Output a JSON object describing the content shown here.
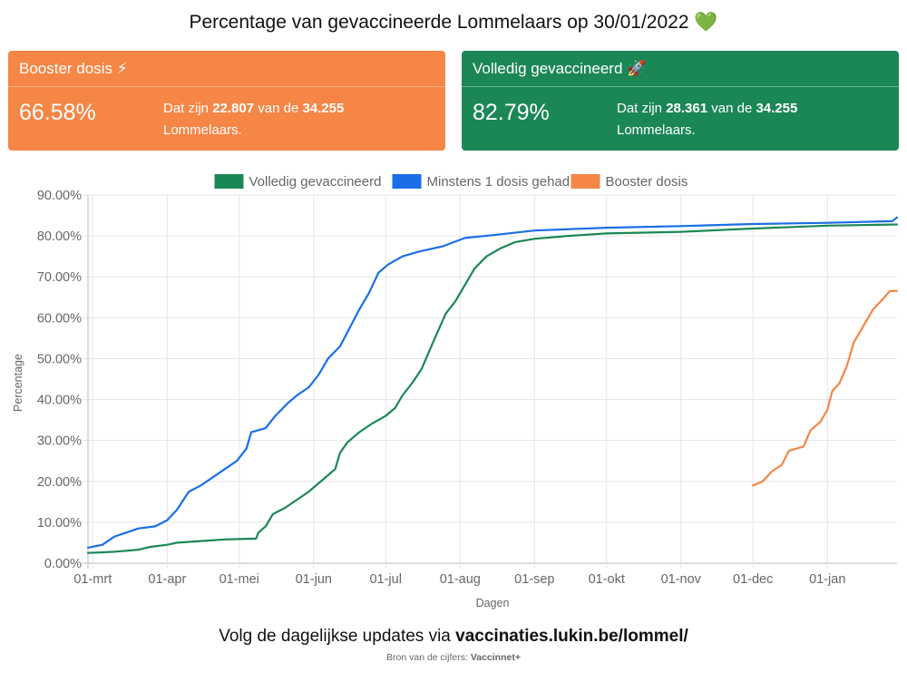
{
  "title": "Percentage van gevaccineerde Lommelaars op 30/01/2022 💚",
  "cards": {
    "booster": {
      "heading": "Booster dosis ⚡",
      "percent": "66.58%",
      "text_prefix": "Dat zijn ",
      "count": "22.807",
      "text_mid": " van de ",
      "total": "34.255",
      "text_suffix": "Lommelaars.",
      "color": "#f58646"
    },
    "full": {
      "heading": "Volledig gevaccineerd 🚀",
      "percent": "82.79%",
      "text_prefix": "Dat zijn ",
      "count": "28.361",
      "text_mid": " van de ",
      "total": "34.255",
      "text_suffix": "Lommelaars.",
      "color": "#1b8755"
    }
  },
  "chart_data": {
    "type": "line",
    "xlabel": "Dagen",
    "ylabel": "Percentage",
    "ylim": [
      0,
      90
    ],
    "yticks": [
      "0.00%",
      "10.00%",
      "20.00%",
      "30.00%",
      "40.00%",
      "50.00%",
      "60.00%",
      "70.00%",
      "80.00%",
      "90.00%"
    ],
    "xlim": [
      "2021-02-27",
      "2022-01-30"
    ],
    "xticks": [
      {
        "date": "2021-03-01",
        "label": "01-mrt"
      },
      {
        "date": "2021-04-01",
        "label": "01-apr"
      },
      {
        "date": "2021-05-01",
        "label": "01-mei"
      },
      {
        "date": "2021-06-01",
        "label": "01-jun"
      },
      {
        "date": "2021-07-01",
        "label": "01-jul"
      },
      {
        "date": "2021-08-01",
        "label": "01-aug"
      },
      {
        "date": "2021-09-01",
        "label": "01-sep"
      },
      {
        "date": "2021-10-01",
        "label": "01-okt"
      },
      {
        "date": "2021-11-01",
        "label": "01-nov"
      },
      {
        "date": "2021-12-01",
        "label": "01-dec"
      },
      {
        "date": "2022-01-01",
        "label": "01-jan"
      }
    ],
    "grid": true,
    "legend_position": "top",
    "series": [
      {
        "name": "Volledig gevaccineerd",
        "color": "#1b8755",
        "points": [
          [
            "2021-02-27",
            2.5
          ],
          [
            "2021-03-10",
            2.8
          ],
          [
            "2021-03-20",
            3.3
          ],
          [
            "2021-03-25",
            4.0
          ],
          [
            "2021-04-01",
            4.5
          ],
          [
            "2021-04-05",
            5.0
          ],
          [
            "2021-04-15",
            5.4
          ],
          [
            "2021-04-25",
            5.8
          ],
          [
            "2021-05-08",
            6.0
          ],
          [
            "2021-05-09",
            7.5
          ],
          [
            "2021-05-12",
            9.0
          ],
          [
            "2021-05-15",
            12.0
          ],
          [
            "2021-05-20",
            13.5
          ],
          [
            "2021-05-25",
            15.5
          ],
          [
            "2021-05-30",
            17.5
          ],
          [
            "2021-06-01",
            18.5
          ],
          [
            "2021-06-05",
            20.5
          ],
          [
            "2021-06-10",
            23.0
          ],
          [
            "2021-06-12",
            27.0
          ],
          [
            "2021-06-15",
            29.5
          ],
          [
            "2021-06-20",
            32.0
          ],
          [
            "2021-06-25",
            34.0
          ],
          [
            "2021-07-01",
            36.0
          ],
          [
            "2021-07-05",
            38.0
          ],
          [
            "2021-07-08",
            41.0
          ],
          [
            "2021-07-12",
            44.0
          ],
          [
            "2021-07-16",
            47.5
          ],
          [
            "2021-07-20",
            53.0
          ],
          [
            "2021-07-23",
            57.0
          ],
          [
            "2021-07-26",
            61.0
          ],
          [
            "2021-07-30",
            64.0
          ],
          [
            "2021-08-03",
            68.0
          ],
          [
            "2021-08-07",
            72.0
          ],
          [
            "2021-08-12",
            75.0
          ],
          [
            "2021-08-18",
            77.0
          ],
          [
            "2021-08-24",
            78.5
          ],
          [
            "2021-09-01",
            79.3
          ],
          [
            "2021-09-15",
            80.0
          ],
          [
            "2021-10-01",
            80.6
          ],
          [
            "2021-11-01",
            81.0
          ],
          [
            "2021-12-01",
            81.8
          ],
          [
            "2022-01-01",
            82.5
          ],
          [
            "2022-01-30",
            82.79
          ]
        ]
      },
      {
        "name": "Minstens 1 dosis gehad",
        "color": "#1a6ee8",
        "points": [
          [
            "2021-02-27",
            3.8
          ],
          [
            "2021-03-05",
            4.5
          ],
          [
            "2021-03-10",
            6.5
          ],
          [
            "2021-03-15",
            7.5
          ],
          [
            "2021-03-20",
            8.5
          ],
          [
            "2021-03-27",
            9.0
          ],
          [
            "2021-04-01",
            10.5
          ],
          [
            "2021-04-05",
            13.0
          ],
          [
            "2021-04-10",
            17.5
          ],
          [
            "2021-04-15",
            19.0
          ],
          [
            "2021-04-20",
            21.0
          ],
          [
            "2021-04-25",
            23.0
          ],
          [
            "2021-04-30",
            25.0
          ],
          [
            "2021-05-04",
            28.0
          ],
          [
            "2021-05-06",
            32.0
          ],
          [
            "2021-05-12",
            33.0
          ],
          [
            "2021-05-16",
            36.0
          ],
          [
            "2021-05-21",
            39.0
          ],
          [
            "2021-05-25",
            41.0
          ],
          [
            "2021-05-30",
            43.0
          ],
          [
            "2021-06-03",
            46.0
          ],
          [
            "2021-06-07",
            50.0
          ],
          [
            "2021-06-12",
            53.0
          ],
          [
            "2021-06-16",
            57.5
          ],
          [
            "2021-06-20",
            62.0
          ],
          [
            "2021-06-24",
            66.0
          ],
          [
            "2021-06-28",
            71.0
          ],
          [
            "2021-07-02",
            73.0
          ],
          [
            "2021-07-08",
            75.0
          ],
          [
            "2021-07-15",
            76.2
          ],
          [
            "2021-07-25",
            77.5
          ],
          [
            "2021-08-03",
            79.5
          ],
          [
            "2021-08-15",
            80.2
          ],
          [
            "2021-09-01",
            81.3
          ],
          [
            "2021-10-01",
            82.0
          ],
          [
            "2021-11-01",
            82.4
          ],
          [
            "2021-12-01",
            82.9
          ],
          [
            "2022-01-01",
            83.2
          ],
          [
            "2022-01-28",
            83.6
          ],
          [
            "2022-01-30",
            84.5
          ]
        ]
      },
      {
        "name": "Booster dosis",
        "color": "#f58646",
        "points": [
          [
            "2021-12-01",
            19.0
          ],
          [
            "2021-12-05",
            20.0
          ],
          [
            "2021-12-09",
            22.5
          ],
          [
            "2021-12-13",
            24.0
          ],
          [
            "2021-12-16",
            27.5
          ],
          [
            "2021-12-22",
            28.5
          ],
          [
            "2021-12-25",
            32.5
          ],
          [
            "2021-12-29",
            34.5
          ],
          [
            "2022-01-01",
            37.5
          ],
          [
            "2022-01-03",
            42.0
          ],
          [
            "2022-01-06",
            44.0
          ],
          [
            "2022-01-09",
            48.0
          ],
          [
            "2022-01-12",
            54.0
          ],
          [
            "2022-01-16",
            58.0
          ],
          [
            "2022-01-20",
            62.0
          ],
          [
            "2022-01-24",
            64.5
          ],
          [
            "2022-01-27",
            66.5
          ],
          [
            "2022-01-30",
            66.58
          ]
        ]
      }
    ]
  },
  "footer": {
    "prefix": "Volg de dagelijkse updates via ",
    "link": "vaccinaties.lukin.be/lommel/",
    "source_label": "Bron van de cijfers: ",
    "source_value": "Vaccinnet+"
  }
}
